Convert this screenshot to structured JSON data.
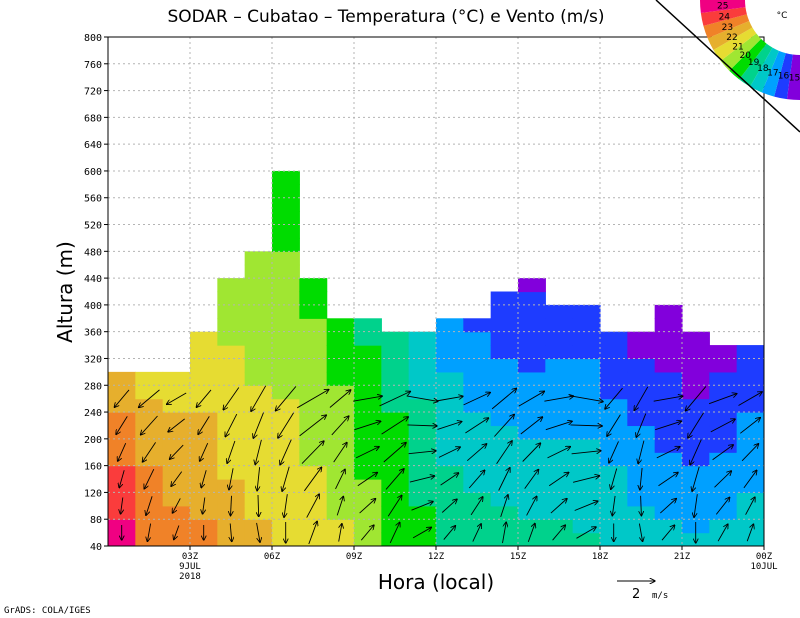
{
  "chart_data": {
    "type": "heatmap",
    "title": "SODAR – Cubatao – Temperatura (°C) e Vento (m/s)",
    "xlabel": "Hora (local)",
    "ylabel": "Altura (m)",
    "ylim": [
      40,
      800
    ],
    "y_ticks": [
      40,
      80,
      120,
      160,
      200,
      240,
      280,
      320,
      360,
      400,
      440,
      480,
      520,
      560,
      600,
      640,
      680,
      720,
      760,
      800
    ],
    "xlim": [
      0,
      24
    ],
    "x_ticks": [
      {
        "x": 3,
        "label": "03Z",
        "sub1": "9JUL",
        "sub2": "2018"
      },
      {
        "x": 6,
        "label": "06Z"
      },
      {
        "x": 9,
        "label": "09Z"
      },
      {
        "x": 12,
        "label": "12Z"
      },
      {
        "x": 15,
        "label": "15Z"
      },
      {
        "x": 18,
        "label": "18Z"
      },
      {
        "x": 21,
        "label": "21Z"
      },
      {
        "x": 24,
        "label": "00Z",
        "sub1": "10JUL"
      }
    ],
    "hours": [
      0.5,
      1.5,
      2.5,
      3.5,
      4.5,
      5.5,
      6.5,
      7.5,
      8.5,
      9.5,
      10.5,
      11.5,
      12.5,
      13.5,
      14.5,
      15.5,
      16.5,
      17.5,
      18.5,
      19.5,
      20.5,
      21.5,
      22.5,
      23.5
    ],
    "top_height_m": [
      300,
      300,
      300,
      360,
      440,
      480,
      600,
      440,
      380,
      380,
      360,
      360,
      380,
      380,
      420,
      440,
      400,
      400,
      360,
      360,
      400,
      360,
      340,
      340
    ],
    "temp_ground_C": [
      25.5,
      24,
      23.4,
      23.2,
      22.5,
      22.2,
      22,
      21.5,
      21.2,
      20.5,
      20,
      19.3,
      19,
      18.8,
      18.6,
      18.4,
      18.3,
      18.2,
      18,
      17.6,
      17.3,
      17.2,
      17.3,
      17.8
    ],
    "temp_lapse_C_per_100m": [
      1.2,
      0.9,
      0.7,
      0.6,
      0.5,
      0.5,
      0.45,
      0.45,
      0.5,
      0.5,
      0.5,
      0.6,
      0.8,
      0.9,
      0.9,
      0.9,
      0.8,
      0.8,
      0.9,
      0.9,
      0.9,
      1.0,
      0.9,
      0.9
    ],
    "wind_heights_m": [
      60,
      100,
      140,
      180,
      220,
      260
    ],
    "wind_speed_ms": [
      1.0,
      1.2,
      1.0,
      1.0,
      1.2,
      1.3,
      1.4,
      1.6,
      1.2,
      1.3,
      1.5,
      1.4,
      1.2,
      1.3,
      1.4,
      1.3,
      1.3,
      1.5,
      1.2,
      1.2,
      1.3,
      1.4,
      1.3,
      1.2
    ],
    "wind_dir_to_deg": [
      200,
      210,
      220,
      200,
      195,
      190,
      200,
      40,
      30,
      60,
      45,
      80,
      60,
      45,
      30,
      40,
      60,
      80,
      200,
      190,
      60,
      200,
      50,
      40
    ],
    "wind_ref_label": "2",
    "wind_ref_units": "m/s",
    "legend_labels": [
      "25",
      "24",
      "23",
      "22",
      "21",
      "20",
      "19",
      "18",
      "17",
      "16",
      "15"
    ],
    "legend_unit": "°C"
  },
  "colors": {
    "scale": [
      "#8200dc",
      "#1e3cff",
      "#00a0ff",
      "#00c8c8",
      "#00d28c",
      "#00dc00",
      "#a0e632",
      "#e6dc32",
      "#e6af2d",
      "#f08228",
      "#fa3c3c",
      "#f00082"
    ],
    "frame": "#000000",
    "grid": "#b4b4b4"
  },
  "credit": "GrADS: COLA/IGES"
}
